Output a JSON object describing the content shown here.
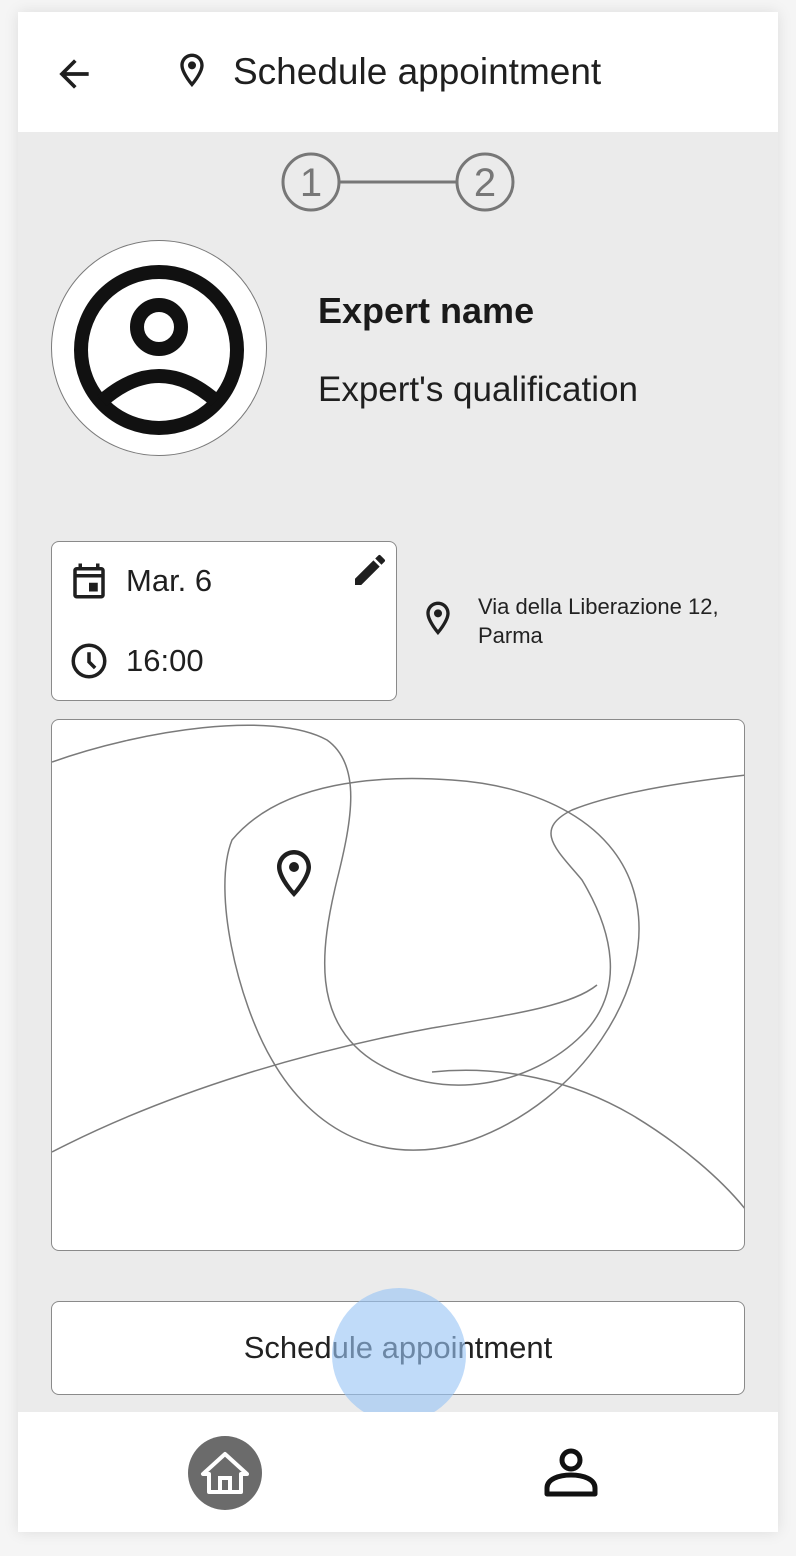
{
  "app_bar": {
    "title": "Schedule appointment",
    "back_icon": "arrow-back-icon",
    "title_icon": "location-pin-icon"
  },
  "stepper": {
    "steps": [
      "1",
      "2"
    ],
    "current_step": 1
  },
  "expert": {
    "name": "Expert name",
    "qualification": "Expert's qualification",
    "avatar_icon": "account-circle-icon"
  },
  "appointment": {
    "date": "Mar. 6",
    "time": "16:00",
    "date_icon": "calendar-icon",
    "time_icon": "clock-icon",
    "edit_icon": "pencil-icon"
  },
  "location": {
    "address_line1": "Via della Liberazione 12,",
    "address_line2": "Parma",
    "icon": "location-pin-icon"
  },
  "map": {
    "marker_icon": "location-pin-icon"
  },
  "actions": {
    "schedule_label": "Schedule appointment"
  },
  "bottom_nav": {
    "items": [
      {
        "name": "home",
        "icon": "home-icon",
        "active": true
      },
      {
        "name": "profile",
        "icon": "person-icon",
        "active": false
      }
    ]
  },
  "colors": {
    "background": "#ebebeb",
    "surface": "#ffffff",
    "touch_ripple": "#99c5f5",
    "active_nav": "#6b6b6b"
  }
}
